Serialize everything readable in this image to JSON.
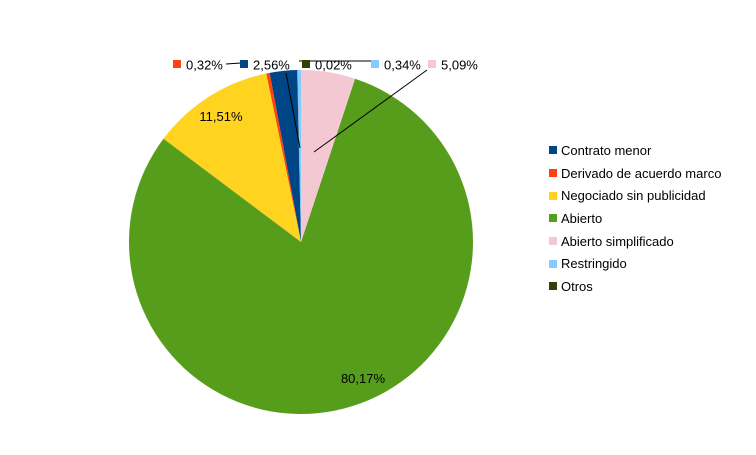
{
  "page": {
    "background_color": "#ffffff",
    "text_color": "#000000"
  },
  "chart_data": {
    "type": "pie",
    "title": "",
    "legend_position": "right",
    "start_angle_deg": 91.3,
    "direction": "counterclockwise",
    "value_unit": "%",
    "decimal_separator": ",",
    "slices": [
      {
        "name": "Contrato menor",
        "value": 2.56,
        "label": "2,56%",
        "color": "#004586"
      },
      {
        "name": "Derivado de acuerdo marco",
        "value": 0.32,
        "label": "0,32%",
        "color": "#FF420E"
      },
      {
        "name": "Negociado sin publicidad",
        "value": 11.51,
        "label": "11,51%",
        "color": "#FFD320"
      },
      {
        "name": "Abierto",
        "value": 80.17,
        "label": "80,17%",
        "color": "#579D1C"
      },
      {
        "name": "Abierto simplificado",
        "value": 5.09,
        "label": "5,09%",
        "color": "#F4C8D2"
      },
      {
        "name": "Restringido",
        "value": 0.34,
        "label": "0,34%",
        "color": "#83CAFF"
      },
      {
        "name": "Otros",
        "value": 0.02,
        "label": "0,02%",
        "color": "#314004"
      }
    ]
  }
}
